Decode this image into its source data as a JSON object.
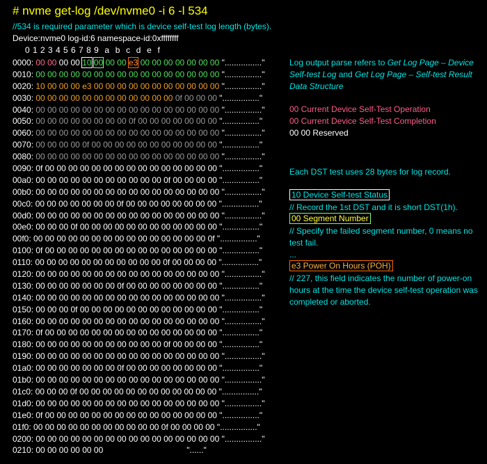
{
  "header": {
    "command": "# nvme get-log /dev/nvme0 -i 6 -l 534",
    "comment": "//534 is required parameter which is device self-test log length (bytes).",
    "device_line": "Device:nvme0 log-id:6 namespace-id:0xffffffff",
    "column_header": "0 1 2 3 4 5 6 7 8 9  a  b  c  d  e  f"
  },
  "dump_rows": [
    {
      "addr": "0000:",
      "hex": "00 00 00 00 10 00 00 00 e3 00 00 00 00 00 00 00",
      "ascii": "\"................\""
    },
    {
      "addr": "0010:",
      "hex": "00 00 00 00 00 00 00 00 00 00 00 00 00 00 00 00",
      "ascii": "\"................\""
    },
    {
      "addr": "0020:",
      "hex": "10 00 00 00 e3 00 00 00 00 00 00 00 00 00 00 00",
      "ascii": "\"................\""
    },
    {
      "addr": "0030:",
      "hex": "00 00 00 00 00 00 00 00 00 00 00 00 0f 00 00 00",
      "ascii": "\"................\""
    },
    {
      "addr": "0040:",
      "hex": "00 00 00 00 00 00 00 00 00 00 00 00 00 00 00 00",
      "ascii": "\"................\""
    },
    {
      "addr": "0050:",
      "hex": "00 00 00 00 00 00 00 00 0f 00 00 00 00 00 00 00",
      "ascii": "\"................\""
    },
    {
      "addr": "0060:",
      "hex": "00 00 00 00 00 00 00 00 00 00 00 00 00 00 00 00",
      "ascii": "\"................\""
    },
    {
      "addr": "0070:",
      "hex": "00 00 00 00 0f 00 00 00 00 00 00 00 00 00 00 00",
      "ascii": "\"................\""
    },
    {
      "addr": "0080:",
      "hex": "00 00 00 00 00 00 00 00 00 00 00 00 00 00 00 00",
      "ascii": "\"................\""
    },
    {
      "addr": "0090:",
      "hex": "0f 00 00 00 00 00 00 00 00 00 00 00 00 00 00 00",
      "ascii": "\"................\""
    },
    {
      "addr": "00a0:",
      "hex": "00 00 00 00 00 00 00 00 00 00 00 0f 00 00 00 00",
      "ascii": "\"................\""
    },
    {
      "addr": "00b0:",
      "hex": "00 00 00 00 00 00 00 00 00 00 00 00 00 00 00 00",
      "ascii": "\"................\""
    },
    {
      "addr": "00c0:",
      "hex": "00 00 00 00 00 00 00 0f 00 00 00 00 00 00 00 00",
      "ascii": "\"................\""
    },
    {
      "addr": "00d0:",
      "hex": "00 00 00 00 00 00 00 00 00 00 00 00 00 00 00 00",
      "ascii": "\"................\""
    },
    {
      "addr": "00e0:",
      "hex": "00 00 00 0f 00 00 00 00 00 00 00 00 00 00 00 00",
      "ascii": "\"................\""
    },
    {
      "addr": "00f0:",
      "hex": "00 00 00 00 00 00 00 00 00 00 00 00 00 00 00 0f",
      "ascii": "\"................\""
    },
    {
      "addr": "0100:",
      "hex": "0f 00 00 00 00 00 00 00 00 00 00 00 00 00 00 00",
      "ascii": "\"................\""
    },
    {
      "addr": "0110:",
      "hex": "00 00 00 00 00 00 00 00 00 00 00 0f 00 00 00 00",
      "ascii": "\"................\""
    },
    {
      "addr": "0120:",
      "hex": "00 00 00 00 00 00 00 00 00 00 00 00 00 00 00 00",
      "ascii": "\"................\""
    },
    {
      "addr": "0130:",
      "hex": "00 00 00 00 00 00 00 0f 00 00 00 00 00 00 00 00",
      "ascii": "\"................\""
    },
    {
      "addr": "0140:",
      "hex": "00 00 00 00 00 00 00 00 00 00 00 00 00 00 00 00",
      "ascii": "\"................\""
    },
    {
      "addr": "0150:",
      "hex": "00 00 00 0f 00 00 00 00 00 00 00 00 00 00 00 00",
      "ascii": "\"................\""
    },
    {
      "addr": "0160:",
      "hex": "00 00 00 00 00 00 00 00 00 00 00 00 00 00 00 00",
      "ascii": "\"................\""
    },
    {
      "addr": "0170:",
      "hex": "0f 00 00 00 00 00 00 00 00 00 00 00 00 00 00 00",
      "ascii": "\"................\""
    },
    {
      "addr": "0180:",
      "hex": "00 00 00 00 00 00 00 00 00 00 00 0f 00 00 00 00",
      "ascii": "\"................\""
    },
    {
      "addr": "0190:",
      "hex": "00 00 00 00 00 00 00 00 00 00 00 00 00 00 00 00",
      "ascii": "\"................\""
    },
    {
      "addr": "01a0:",
      "hex": "00 00 00 00 00 00 00 0f 00 00 00 00 00 00 00 00",
      "ascii": "\"................\""
    },
    {
      "addr": "01b0:",
      "hex": "00 00 00 00 00 00 00 00 00 00 00 00 00 00 00 00",
      "ascii": "\"................\""
    },
    {
      "addr": "01c0:",
      "hex": "00 00 00 0f 00 00 00 00 00 00 00 00 00 00 00 00",
      "ascii": "\"................\""
    },
    {
      "addr": "01d0:",
      "hex": "00 00 00 00 00 00 00 00 00 00 00 00 00 00 00 00",
      "ascii": "\"................\""
    },
    {
      "addr": "01e0:",
      "hex": "0f 00 00 00 00 00 00 00 00 00 00 00 00 00 00 00",
      "ascii": "\"................\""
    },
    {
      "addr": "01f0:",
      "hex": "00 00 00 00 00 00 00 00 00 00 00 0f 00 00 00 00",
      "ascii": "\"................\""
    },
    {
      "addr": "0200:",
      "hex": "00 00 00 00 00 00 00 00 00 00 00 00 00 00 00 00",
      "ascii": "\"................\""
    },
    {
      "addr": "0210:",
      "hex": "00 00 00 00 00 00",
      "ascii": "\"......\""
    }
  ],
  "notes": {
    "parse_prefix": "Log output parse refers to ",
    "parse_ref1": "Get Log Page – Device Self-test Log",
    "parse_and": " and ",
    "parse_ref2": "Get Log Page – Self-test Result Data Structure",
    "op_line": "00 Current Device Self-Test Operation",
    "completion_line": "00 Current Device Self-Test Completion",
    "reserved_line": "00 00 Reserved",
    "dst_bytes": "Each DST test uses 28 bytes for log record.",
    "status_tag": "10 Device Self-test Status",
    "status_comment": "// Record the 1st DST and it is short DST(1h).",
    "segment_tag": "00 Segment Number",
    "segment_comment": "// Specify the failed segment number, 0 means no test fail.",
    "ellipsis": "...",
    "poh_tag": "e3 Power On Hours (POH)",
    "poh_comment": "// 227, this field indicates the number of power-on hours at the time the device self-test operation was completed or aborted."
  },
  "colors": {
    "background": "#000000",
    "command": "#ffff00",
    "comment": "#00e5e5",
    "highlight_pink": "#ff6a8a",
    "highlight_green": "#4ce05a",
    "highlight_orange": "#f0a020",
    "box_orange": "#ff6a00"
  }
}
